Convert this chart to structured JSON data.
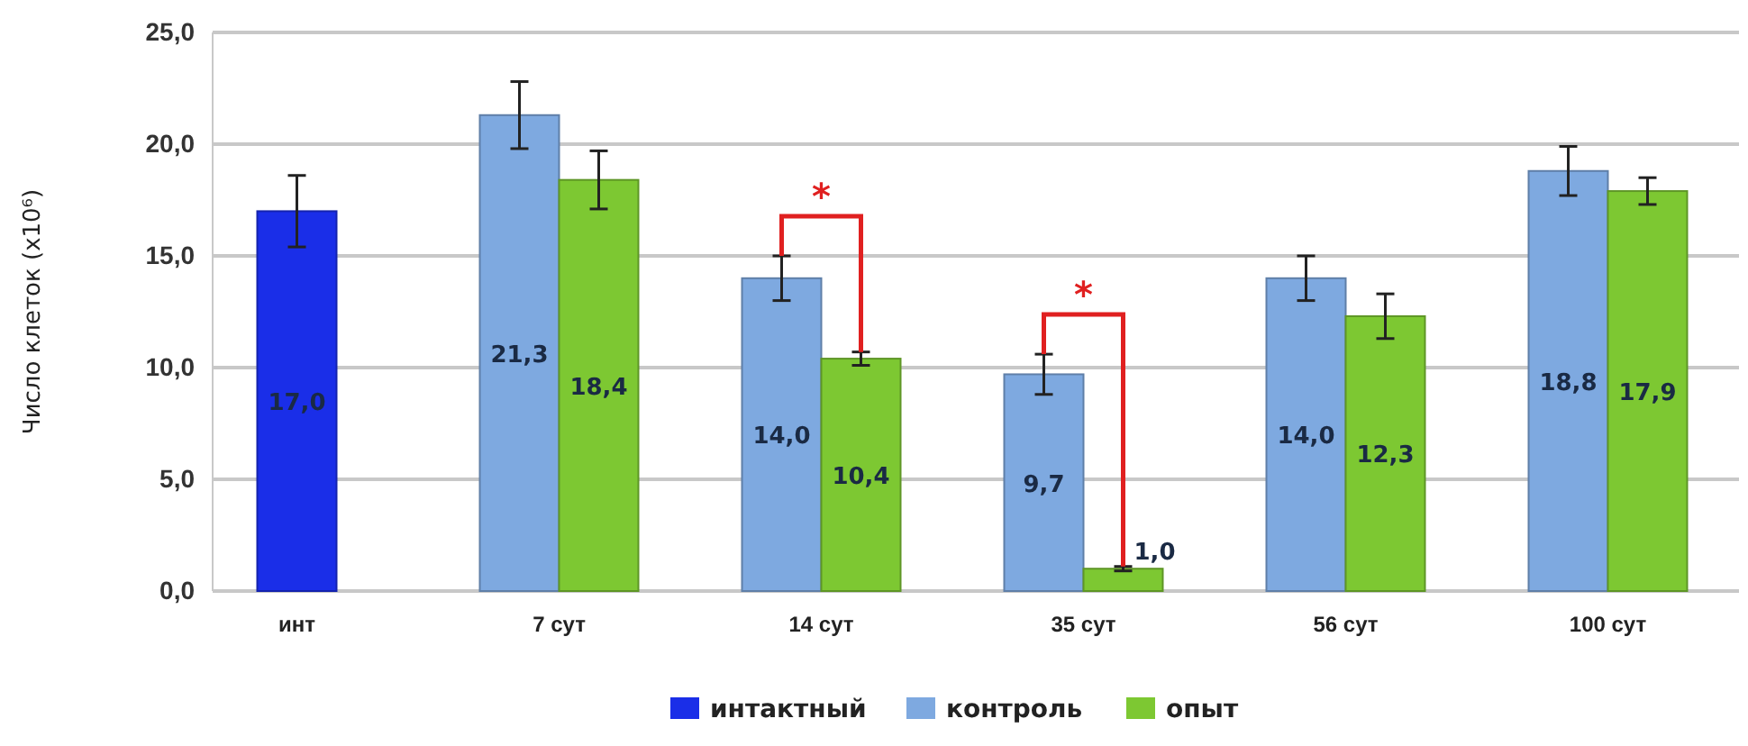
{
  "chart_data": {
    "type": "bar",
    "ylabel": "Число клеток (x10⁶)",
    "categories": [
      "инт",
      "7 сут",
      "14 сут",
      "35 сут",
      "56 сут",
      "100 сут"
    ],
    "series": [
      {
        "name": "интактный",
        "color": "#1a2ee8",
        "values": [
          17.0,
          null,
          null,
          null,
          null,
          null
        ],
        "errors": [
          1.6,
          null,
          null,
          null,
          null,
          null
        ],
        "value_labels": [
          "17,0",
          null,
          null,
          null,
          null,
          null
        ]
      },
      {
        "name": "контроль",
        "color": "#7ea9e0",
        "values": [
          null,
          21.3,
          14.0,
          9.7,
          14.0,
          18.8
        ],
        "errors": [
          null,
          1.5,
          1.0,
          0.9,
          1.0,
          1.1
        ],
        "value_labels": [
          null,
          "21,3",
          "14,0",
          "9,7",
          "14,0",
          "18,8"
        ]
      },
      {
        "name": "опыт",
        "color": "#7dc832",
        "values": [
          null,
          18.4,
          10.4,
          1.0,
          12.3,
          17.9
        ],
        "errors": [
          null,
          1.3,
          0.3,
          0.1,
          1.0,
          0.6
        ],
        "value_labels": [
          null,
          "18,4",
          "10,4",
          "1,0",
          "12,3",
          "17,9"
        ]
      }
    ],
    "ylim": [
      0,
      25
    ],
    "yticks": [
      {
        "value": 0,
        "label": "0,0"
      },
      {
        "value": 5,
        "label": "5,0"
      },
      {
        "value": 10,
        "label": "10,0"
      },
      {
        "value": 15,
        "label": "15,0"
      },
      {
        "value": 20,
        "label": "20,0"
      },
      {
        "value": 25,
        "label": "25,0"
      }
    ],
    "grid": "y",
    "legend": "bottom",
    "annotations": [
      "*",
      "*"
    ]
  }
}
